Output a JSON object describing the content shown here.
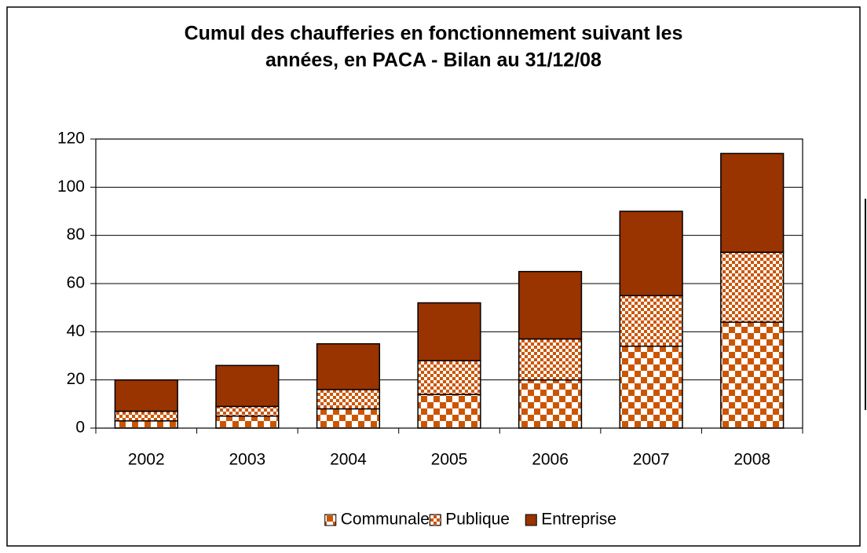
{
  "chart_data": {
    "type": "stacked_bar",
    "title": [
      "Cumul des chaufferies en fonctionnement suivant les",
      "années, en PACA - Bilan au 31/12/08"
    ],
    "categories": [
      "2002",
      "2003",
      "2004",
      "2005",
      "2006",
      "2007",
      "2008"
    ],
    "series": [
      {
        "name": "Communale",
        "color": "#cc5500",
        "pattern": "coarse-checker",
        "values": [
          3,
          5,
          8,
          14,
          20,
          34,
          44
        ]
      },
      {
        "name": "Publique",
        "color": "#cc5500",
        "pattern": "fine-checker",
        "values": [
          4,
          4,
          8,
          14,
          17,
          21,
          29
        ]
      },
      {
        "name": "Entreprise",
        "color": "#993300",
        "pattern": "solid",
        "values": [
          13,
          17,
          19,
          24,
          28,
          35,
          41
        ]
      }
    ],
    "ylim": [
      0,
      120
    ],
    "yticks": [
      0,
      20,
      40,
      60,
      80,
      100,
      120
    ],
    "grid": true,
    "legend": "bottom"
  }
}
